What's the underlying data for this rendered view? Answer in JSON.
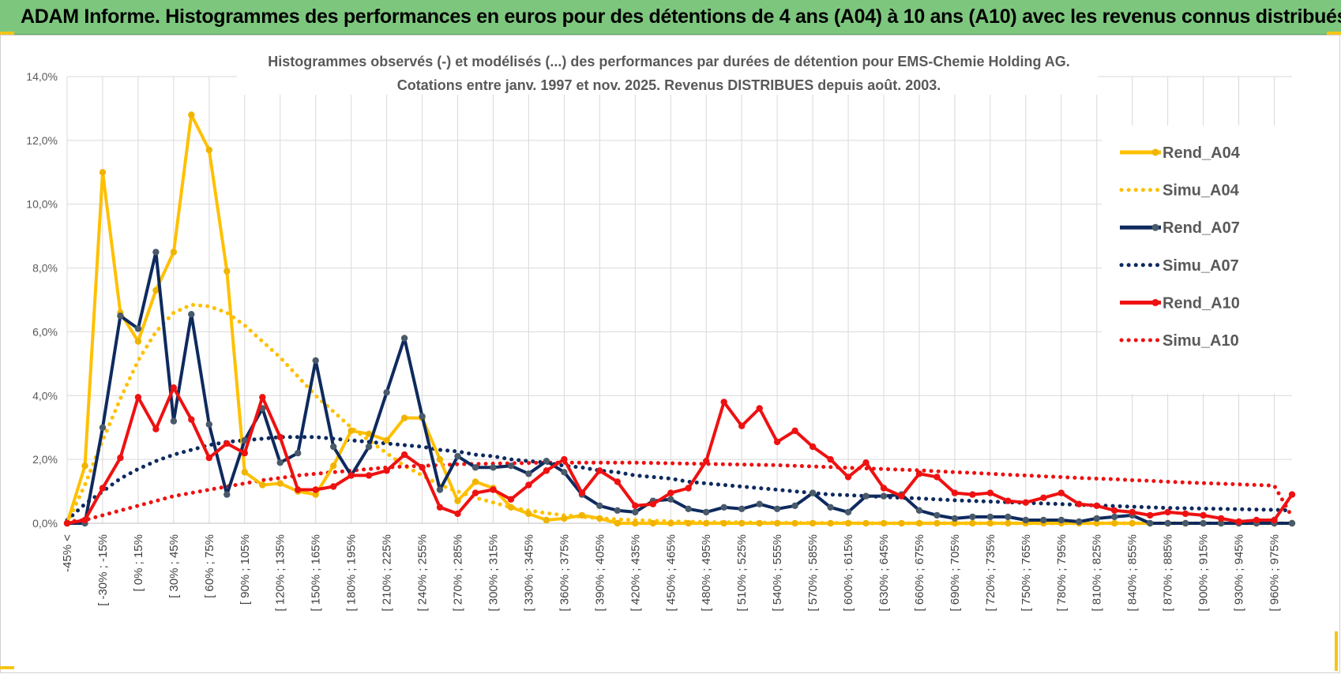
{
  "banner": {
    "title": "ADAM Informe. Histogrammes des performances en euros pour des détentions de 4 ans (A04) à 10 ans (A10) avec les revenus connus distribués"
  },
  "colors": {
    "banner_bg": "#7dc67e",
    "a04": "#ffc000",
    "a07": "#0e2a5e",
    "a10": "#ee1111",
    "grid": "#d9d9d9",
    "marker_a07": "#4a5a6a",
    "marker_a04": "#f0b400"
  },
  "chart_data": {
    "type": "line",
    "title": "Histogrammes observés (-) et modélisés (...) des performances par durées de détention pour EMS-Chemie Holding AG.",
    "subtitle": "Cotations entre janv. 1997 et nov. 2025. Revenus DISTRIBUES depuis août. 2003.",
    "xlabel": "",
    "ylabel": "",
    "ylim": [
      0,
      14
    ],
    "yticks": [
      "0,0%",
      "2,0%",
      "4,0%",
      "6,0%",
      "8,0%",
      "10,0%",
      "12,0%",
      "14,0%"
    ],
    "x_tick_labels": [
      "-45% <",
      "[ -30% ; -15%",
      "[ 0% ; 15%",
      "[ 30% ; 45%",
      "[ 60% ; 75%",
      "[ 90% ; 105%",
      "[ 120% ; 135%",
      "[ 150% ; 165%",
      "[ 180% ; 195%",
      "[ 210% ; 225%",
      "[ 240% ; 255%",
      "[ 270% ; 285%",
      "[ 300% ; 315%",
      "[ 330% ; 345%",
      "[ 360% ; 375%",
      "[ 390% ; 405%",
      "[ 420% ; 435%",
      "[ 450% ; 465%",
      "[ 480% ; 495%",
      "[ 510% ; 525%",
      "[ 540% ; 555%",
      "[ 570% ; 585%",
      "[ 600% ; 615%",
      "[ 630% ; 645%",
      "[ 660% ; 675%",
      "[ 690% ; 705%",
      "[ 720% ; 735%",
      "[ 750% ; 765%",
      "[ 780% ; 795%",
      "[ 810% ; 825%",
      "[ 840% ; 855%",
      "[ 870% ; 885%",
      "[ 900% ; 915%",
      "[ 930% ; 945%",
      "[ 960% ; 975%"
    ],
    "legend_position": "right",
    "series": [
      {
        "name": "Rend_A04",
        "style": "solid",
        "values": [
          0,
          1.8,
          11.0,
          6.6,
          5.7,
          7.3,
          8.5,
          12.8,
          11.7,
          7.9,
          1.6,
          1.2,
          1.25,
          1.0,
          0.9,
          1.8,
          2.9,
          2.8,
          2.6,
          3.3,
          3.3,
          2.0,
          0.7,
          1.3,
          1.1,
          0.5,
          0.3,
          0.1,
          0.15,
          0.25,
          0.15,
          0,
          0,
          0,
          0,
          0,
          0,
          0,
          0,
          0,
          0,
          0,
          0,
          0,
          0,
          0,
          0,
          0,
          0,
          0,
          0,
          0,
          0,
          0,
          0,
          0,
          0,
          0,
          0,
          0,
          0,
          0,
          0,
          0,
          0,
          0,
          0,
          0,
          0,
          0
        ]
      },
      {
        "name": "Simu_A04",
        "style": "dotted",
        "values": [
          0,
          1.2,
          2.6,
          3.9,
          5.1,
          6.0,
          6.6,
          6.85,
          6.8,
          6.6,
          6.2,
          5.7,
          5.2,
          4.6,
          4.0,
          3.5,
          3.0,
          2.6,
          2.2,
          1.8,
          1.5,
          1.2,
          1.0,
          0.8,
          0.65,
          0.5,
          0.4,
          0.32,
          0.25,
          0.2,
          0.16,
          0.12,
          0.1,
          0.08,
          0.06,
          0.05,
          0.04,
          0.03,
          0.03,
          0.02,
          0.02,
          0.01,
          0.01,
          0.01,
          0.01,
          0,
          0,
          0,
          0,
          0,
          0,
          0,
          0,
          0,
          0,
          0,
          0,
          0,
          0,
          0,
          0,
          0,
          0,
          0,
          0,
          0,
          0,
          0,
          0,
          0
        ]
      },
      {
        "name": "Rend_A07",
        "style": "solid",
        "values": [
          0,
          0,
          3.0,
          6.5,
          6.1,
          8.5,
          3.2,
          6.55,
          3.1,
          0.9,
          2.6,
          3.6,
          1.9,
          2.2,
          5.1,
          2.4,
          1.5,
          2.4,
          4.1,
          5.8,
          3.35,
          1.05,
          2.1,
          1.75,
          1.75,
          1.8,
          1.55,
          1.95,
          1.6,
          0.9,
          0.55,
          0.4,
          0.35,
          0.7,
          0.75,
          0.45,
          0.35,
          0.5,
          0.45,
          0.6,
          0.45,
          0.55,
          0.95,
          0.5,
          0.35,
          0.85,
          0.85,
          0.9,
          0.4,
          0.25,
          0.15,
          0.2,
          0.2,
          0.2,
          0.1,
          0.1,
          0.1,
          0.05,
          0.15,
          0.2,
          0.25,
          0,
          0,
          0,
          0,
          0,
          0,
          0,
          0,
          0
        ]
      },
      {
        "name": "Simu_A07",
        "style": "dotted",
        "values": [
          0.1,
          0.6,
          1.0,
          1.4,
          1.7,
          1.95,
          2.15,
          2.3,
          2.45,
          2.55,
          2.6,
          2.65,
          2.7,
          2.7,
          2.7,
          2.65,
          2.6,
          2.55,
          2.5,
          2.45,
          2.4,
          2.3,
          2.25,
          2.15,
          2.1,
          2.0,
          1.95,
          1.9,
          1.8,
          1.75,
          1.65,
          1.6,
          1.5,
          1.45,
          1.4,
          1.3,
          1.25,
          1.2,
          1.15,
          1.1,
          1.05,
          1.0,
          0.95,
          0.9,
          0.88,
          0.85,
          0.82,
          0.8,
          0.78,
          0.75,
          0.72,
          0.7,
          0.68,
          0.66,
          0.64,
          0.62,
          0.6,
          0.58,
          0.56,
          0.54,
          0.52,
          0.5,
          0.48,
          0.47,
          0.46,
          0.45,
          0.44,
          0.43,
          0.42,
          0.4
        ]
      },
      {
        "name": "Rend_A10",
        "style": "solid",
        "values": [
          0,
          0.1,
          1.1,
          2.05,
          3.95,
          2.95,
          4.25,
          3.25,
          2.05,
          2.5,
          2.2,
          3.95,
          2.7,
          1.05,
          1.05,
          1.15,
          1.5,
          1.5,
          1.65,
          2.15,
          1.75,
          0.5,
          0.3,
          0.95,
          1.05,
          0.75,
          1.2,
          1.65,
          2.0,
          0.95,
          1.65,
          1.3,
          0.55,
          0.6,
          0.95,
          1.1,
          1.95,
          3.8,
          3.05,
          3.6,
          2.55,
          2.9,
          2.4,
          2.0,
          1.45,
          1.9,
          1.1,
          0.85,
          1.55,
          1.45,
          0.95,
          0.9,
          0.95,
          0.7,
          0.65,
          0.8,
          0.95,
          0.6,
          0.55,
          0.4,
          0.35,
          0.25,
          0.35,
          0.3,
          0.25,
          0.15,
          0.05,
          0.1,
          0.1,
          0.9
        ]
      },
      {
        "name": "Simu_A10",
        "style": "dotted",
        "values": [
          0.05,
          0.1,
          0.25,
          0.4,
          0.55,
          0.7,
          0.85,
          0.95,
          1.05,
          1.15,
          1.25,
          1.35,
          1.42,
          1.5,
          1.55,
          1.6,
          1.65,
          1.7,
          1.75,
          1.78,
          1.8,
          1.82,
          1.85,
          1.86,
          1.87,
          1.88,
          1.89,
          1.9,
          1.9,
          1.9,
          1.9,
          1.9,
          1.9,
          1.89,
          1.88,
          1.87,
          1.86,
          1.85,
          1.84,
          1.83,
          1.82,
          1.8,
          1.78,
          1.76,
          1.74,
          1.72,
          1.7,
          1.68,
          1.66,
          1.63,
          1.6,
          1.58,
          1.55,
          1.52,
          1.5,
          1.47,
          1.45,
          1.42,
          1.4,
          1.38,
          1.35,
          1.33,
          1.3,
          1.28,
          1.26,
          1.24,
          1.22,
          1.2,
          1.18,
          0.2
        ]
      }
    ]
  }
}
